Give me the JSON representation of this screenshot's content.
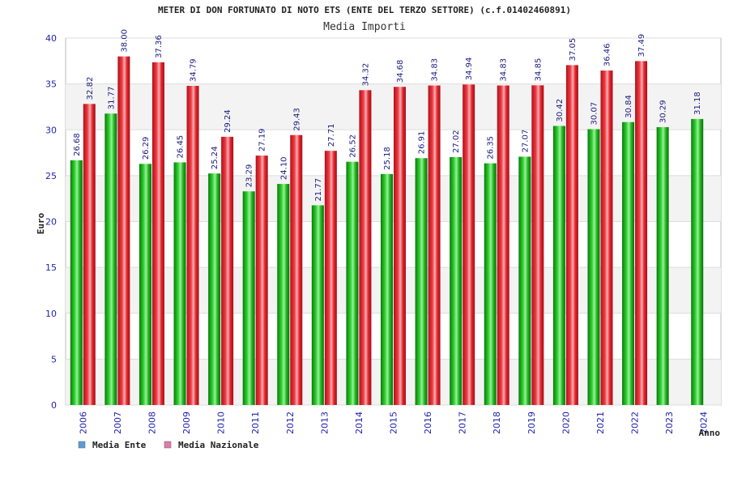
{
  "chart_data": {
    "type": "bar",
    "title": "METER DI DON FORTUNATO DI NOTO ETS (ENTE DEL TERZO SETTORE) (c.f.01402460891)",
    "subtitle": "Media Importi",
    "ylabel": "Euro",
    "xlabel": "Anno",
    "ylim": [
      0,
      40
    ],
    "yticks": [
      0,
      5,
      10,
      15,
      20,
      25,
      30,
      35,
      40
    ],
    "categories": [
      "2006",
      "2007",
      "2008",
      "2009",
      "2010",
      "2011",
      "2012",
      "2013",
      "2014",
      "2015",
      "2016",
      "2017",
      "2018",
      "2019",
      "2020",
      "2021",
      "2022",
      "2023",
      "2024"
    ],
    "series": [
      {
        "name": "Media Ente",
        "color": "#1fb51f",
        "legend_color": "#5b9bd5",
        "values": [
          26.68,
          31.77,
          26.29,
          26.45,
          25.24,
          23.29,
          24.1,
          21.77,
          26.52,
          25.18,
          26.91,
          27.02,
          26.35,
          27.07,
          30.42,
          30.07,
          30.84,
          30.29,
          31.18
        ],
        "labels": [
          "26.68",
          "31.77",
          "26.29",
          "26.45",
          "25.24",
          "23.29",
          "24.10",
          "21.77",
          "26.52",
          "25.18",
          "26.91",
          "27.02",
          "26.35",
          "27.07",
          "30.42",
          "30.07",
          "30.84",
          "30.29",
          "31.18"
        ]
      },
      {
        "name": "Media Nazionale",
        "color": "#e3262e",
        "legend_color": "#e07aa8",
        "values": [
          32.82,
          38.0,
          37.36,
          34.79,
          29.24,
          27.19,
          29.43,
          27.71,
          34.32,
          34.68,
          34.83,
          34.94,
          34.83,
          34.85,
          37.05,
          36.46,
          37.49,
          null,
          null
        ],
        "labels": [
          "32.82",
          "38.00",
          "37.36",
          "34.79",
          "29.24",
          "27.19",
          "29.43",
          "27.71",
          "34.32",
          "34.68",
          "34.83",
          "34.94",
          "34.83",
          "34.85",
          "37.05",
          "36.46",
          "37.49",
          null,
          null
        ]
      }
    ],
    "legend_position": "bottom-left",
    "grid": true
  }
}
